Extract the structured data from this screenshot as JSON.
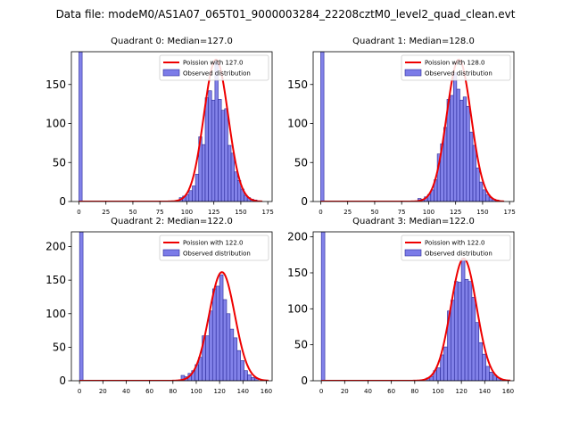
{
  "figure_title": "Data file: modeM0/AS1A07_065T01_9000003284_22208cztM0_level2_quad_clean.evt",
  "colors": {
    "bar_fill": "#7b7be8",
    "bar_edge": "#2a2a99",
    "curve": "#ee0000"
  },
  "chart_data": [
    {
      "type": "bar",
      "quadrant": 0,
      "title": "Quadrant 0: Median=127.0",
      "legend": {
        "curve_label": "Poission with 127.0",
        "hist_label": "Observed distribution",
        "placement": "top-right"
      },
      "xlim": [
        -7,
        179
      ],
      "ylim": [
        0,
        192
      ],
      "xticks": [
        0,
        25,
        50,
        75,
        100,
        125,
        150,
        175
      ],
      "yticks": [
        0,
        50,
        100,
        150
      ],
      "bin_width": 3,
      "bins": [
        {
          "x": 0,
          "count": 192
        },
        {
          "x": 93,
          "count": 5
        },
        {
          "x": 96,
          "count": 7
        },
        {
          "x": 99,
          "count": 9
        },
        {
          "x": 102,
          "count": 14
        },
        {
          "x": 105,
          "count": 20
        },
        {
          "x": 108,
          "count": 35
        },
        {
          "x": 111,
          "count": 83
        },
        {
          "x": 114,
          "count": 73
        },
        {
          "x": 117,
          "count": 133
        },
        {
          "x": 120,
          "count": 142
        },
        {
          "x": 123,
          "count": 130
        },
        {
          "x": 126,
          "count": 180
        },
        {
          "x": 129,
          "count": 131
        },
        {
          "x": 132,
          "count": 117
        },
        {
          "x": 135,
          "count": 119
        },
        {
          "x": 138,
          "count": 72
        },
        {
          "x": 141,
          "count": 62
        },
        {
          "x": 144,
          "count": 38
        },
        {
          "x": 147,
          "count": 27
        },
        {
          "x": 150,
          "count": 16
        },
        {
          "x": 153,
          "count": 8
        },
        {
          "x": 156,
          "count": 5
        },
        {
          "x": 159,
          "count": 3
        },
        {
          "x": 162,
          "count": 2
        }
      ],
      "curve": {
        "mu": 127,
        "peak": 182,
        "x_range": [
          0,
          170
        ]
      }
    },
    {
      "type": "bar",
      "quadrant": 1,
      "title": "Quadrant 1: Median=128.0",
      "legend": {
        "curve_label": "Poission with 128.0",
        "hist_label": "Observed distribution",
        "placement": "top-right"
      },
      "xlim": [
        -7,
        179
      ],
      "ylim": [
        0,
        192
      ],
      "xticks": [
        0,
        25,
        50,
        75,
        100,
        125,
        150,
        175
      ],
      "yticks": [
        0,
        50,
        100,
        150
      ],
      "bin_width": 3,
      "bins": [
        {
          "x": 0,
          "count": 192
        },
        {
          "x": 90,
          "count": 4
        },
        {
          "x": 93,
          "count": 3
        },
        {
          "x": 96,
          "count": 6
        },
        {
          "x": 99,
          "count": 9
        },
        {
          "x": 102,
          "count": 15
        },
        {
          "x": 105,
          "count": 28
        },
        {
          "x": 108,
          "count": 61
        },
        {
          "x": 111,
          "count": 74
        },
        {
          "x": 114,
          "count": 95
        },
        {
          "x": 117,
          "count": 131
        },
        {
          "x": 120,
          "count": 136
        },
        {
          "x": 123,
          "count": 165
        },
        {
          "x": 126,
          "count": 144
        },
        {
          "x": 129,
          "count": 130
        },
        {
          "x": 132,
          "count": 134
        },
        {
          "x": 135,
          "count": 122
        },
        {
          "x": 138,
          "count": 89
        },
        {
          "x": 141,
          "count": 72
        },
        {
          "x": 144,
          "count": 43
        },
        {
          "x": 147,
          "count": 25
        },
        {
          "x": 150,
          "count": 15
        },
        {
          "x": 153,
          "count": 9
        },
        {
          "x": 156,
          "count": 5
        },
        {
          "x": 159,
          "count": 3
        },
        {
          "x": 162,
          "count": 2
        }
      ],
      "curve": {
        "mu": 128,
        "peak": 182,
        "x_range": [
          0,
          170
        ]
      }
    },
    {
      "type": "bar",
      "quadrant": 2,
      "title": "Quadrant 2: Median=122.0",
      "legend": {
        "curve_label": "Poission with 122.0",
        "hist_label": "Observed distribution",
        "placement": "top-right"
      },
      "xlim": [
        -7,
        165
      ],
      "ylim": [
        0,
        222
      ],
      "xticks": [
        0,
        20,
        40,
        60,
        80,
        100,
        120,
        140,
        160
      ],
      "yticks": [
        0,
        50,
        100,
        150,
        200
      ],
      "bin_width": 3,
      "bins": [
        {
          "x": 0,
          "count": 222
        },
        {
          "x": 87,
          "count": 8
        },
        {
          "x": 90,
          "count": 6
        },
        {
          "x": 93,
          "count": 11
        },
        {
          "x": 96,
          "count": 15
        },
        {
          "x": 99,
          "count": 24
        },
        {
          "x": 102,
          "count": 35
        },
        {
          "x": 105,
          "count": 67
        },
        {
          "x": 108,
          "count": 67
        },
        {
          "x": 111,
          "count": 104
        },
        {
          "x": 114,
          "count": 137
        },
        {
          "x": 117,
          "count": 141
        },
        {
          "x": 120,
          "count": 158
        },
        {
          "x": 123,
          "count": 121
        },
        {
          "x": 126,
          "count": 100
        },
        {
          "x": 129,
          "count": 77
        },
        {
          "x": 132,
          "count": 64
        },
        {
          "x": 135,
          "count": 45
        },
        {
          "x": 138,
          "count": 30
        },
        {
          "x": 141,
          "count": 15
        },
        {
          "x": 144,
          "count": 9
        },
        {
          "x": 147,
          "count": 5
        },
        {
          "x": 150,
          "count": 3
        }
      ],
      "curve": {
        "mu": 122,
        "peak": 162,
        "x_range": [
          0,
          162
        ]
      }
    },
    {
      "type": "bar",
      "quadrant": 3,
      "title": "Quadrant 3: Median=122.0",
      "legend": {
        "curve_label": "Poission with 122.0",
        "hist_label": "Observed distribution",
        "placement": "top-right"
      },
      "xlim": [
        -7,
        165
      ],
      "ylim": [
        0,
        207
      ],
      "xticks": [
        0,
        20,
        40,
        60,
        80,
        100,
        120,
        140,
        160
      ],
      "yticks": [
        0,
        50,
        100,
        150,
        200
      ],
      "bin_width": 3,
      "bins": [
        {
          "x": 0,
          "count": 207
        },
        {
          "x": 90,
          "count": 4
        },
        {
          "x": 93,
          "count": 6
        },
        {
          "x": 96,
          "count": 14
        },
        {
          "x": 99,
          "count": 18
        },
        {
          "x": 102,
          "count": 36
        },
        {
          "x": 105,
          "count": 47
        },
        {
          "x": 108,
          "count": 97
        },
        {
          "x": 111,
          "count": 112
        },
        {
          "x": 114,
          "count": 138
        },
        {
          "x": 117,
          "count": 137
        },
        {
          "x": 120,
          "count": 170
        },
        {
          "x": 123,
          "count": 141
        },
        {
          "x": 126,
          "count": 138
        },
        {
          "x": 129,
          "count": 116
        },
        {
          "x": 132,
          "count": 81
        },
        {
          "x": 135,
          "count": 53
        },
        {
          "x": 138,
          "count": 37
        },
        {
          "x": 141,
          "count": 20
        },
        {
          "x": 144,
          "count": 12
        },
        {
          "x": 147,
          "count": 8
        },
        {
          "x": 150,
          "count": 4
        },
        {
          "x": 153,
          "count": 2
        }
      ],
      "curve": {
        "mu": 122,
        "peak": 170,
        "x_range": [
          0,
          162
        ]
      }
    }
  ]
}
